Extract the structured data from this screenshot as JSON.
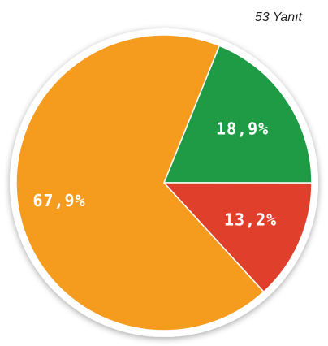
{
  "chart_data": {
    "type": "pie",
    "subtitle": "53 Yanıt",
    "categories": [
      null,
      null,
      null
    ],
    "values": [
      18.9,
      13.2,
      67.9
    ],
    "value_labels": [
      "18,9%",
      "13,2%",
      "67,9%"
    ],
    "colors": [
      "#1f9a45",
      "#e0402b",
      "#f59c1f"
    ]
  }
}
